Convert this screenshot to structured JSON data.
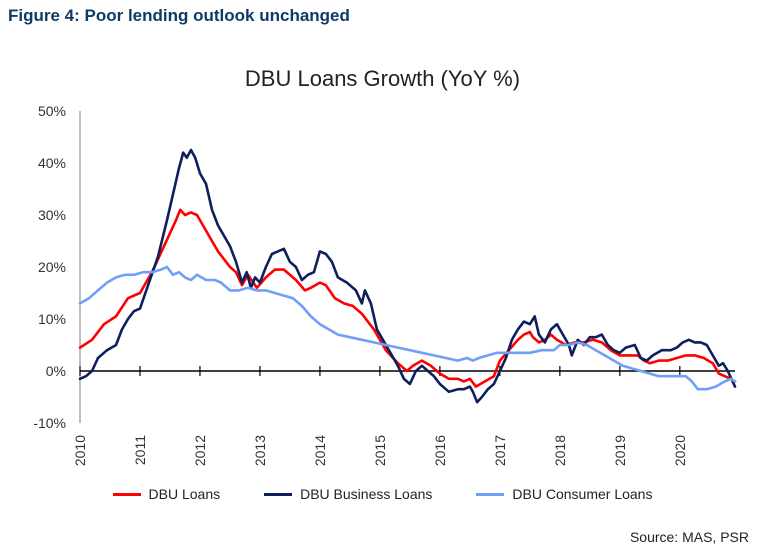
{
  "figure_heading": "Figure 4: Poor lending outlook unchanged",
  "source_note": "Source: MAS, PSR",
  "colors": {
    "heading": "#0f3a66",
    "dbu_loans": "#ff0000",
    "dbu_business_loans": "#0d1f5c",
    "dbu_consumer_loans": "#6fa0f5"
  },
  "chart_data": {
    "type": "line",
    "title": "DBU Loans Growth (YoY %)",
    "xlabel": "",
    "ylabel": "",
    "x_ticks": [
      "2010",
      "2011",
      "2012",
      "2013",
      "2014",
      "2015",
      "2016",
      "2017",
      "2018",
      "2019",
      "2020"
    ],
    "y_ticks": [
      "50%",
      "40%",
      "30%",
      "20%",
      "10%",
      "0%",
      "-10%"
    ],
    "y_tick_values": [
      50,
      40,
      30,
      20,
      10,
      0,
      -10
    ],
    "ylim": [
      -10,
      50
    ],
    "xlim": [
      2010.0,
      2020.92
    ],
    "grid": false,
    "legend": "bottom",
    "series": [
      {
        "name": "DBU Loans",
        "color": "#ff0000",
        "points": [
          [
            2010.0,
            4.5
          ],
          [
            2010.2,
            6
          ],
          [
            2010.4,
            9
          ],
          [
            2010.6,
            10.5
          ],
          [
            2010.8,
            14
          ],
          [
            2011.0,
            15
          ],
          [
            2011.2,
            19
          ],
          [
            2011.4,
            24
          ],
          [
            2011.6,
            29
          ],
          [
            2011.67,
            31
          ],
          [
            2011.75,
            30
          ],
          [
            2011.85,
            30.5
          ],
          [
            2011.95,
            30
          ],
          [
            2012.1,
            27
          ],
          [
            2012.3,
            23
          ],
          [
            2012.5,
            20
          ],
          [
            2012.6,
            19
          ],
          [
            2012.7,
            16.5
          ],
          [
            2012.8,
            18.5
          ],
          [
            2012.95,
            16
          ],
          [
            2013.1,
            18
          ],
          [
            2013.25,
            19.5
          ],
          [
            2013.4,
            19.5
          ],
          [
            2013.6,
            17.5
          ],
          [
            2013.75,
            15.5
          ],
          [
            2013.85,
            16
          ],
          [
            2014.0,
            17
          ],
          [
            2014.1,
            16.5
          ],
          [
            2014.25,
            14
          ],
          [
            2014.4,
            13
          ],
          [
            2014.55,
            12.5
          ],
          [
            2014.7,
            11
          ],
          [
            2014.9,
            8
          ],
          [
            2015.1,
            4
          ],
          [
            2015.3,
            1.5
          ],
          [
            2015.45,
            0
          ],
          [
            2015.55,
            1
          ],
          [
            2015.7,
            2
          ],
          [
            2015.85,
            1
          ],
          [
            2016.0,
            -0.5
          ],
          [
            2016.15,
            -1.5
          ],
          [
            2016.3,
            -1.5
          ],
          [
            2016.4,
            -2
          ],
          [
            2016.5,
            -1.5
          ],
          [
            2016.6,
            -3
          ],
          [
            2016.75,
            -2
          ],
          [
            2016.9,
            -1
          ],
          [
            2017.0,
            2
          ],
          [
            2017.15,
            4
          ],
          [
            2017.3,
            6
          ],
          [
            2017.4,
            7
          ],
          [
            2017.5,
            7.5
          ],
          [
            2017.55,
            6.5
          ],
          [
            2017.65,
            5.5
          ],
          [
            2017.75,
            6
          ],
          [
            2017.85,
            7
          ],
          [
            2017.95,
            6
          ],
          [
            2018.1,
            5
          ],
          [
            2018.25,
            5.5
          ],
          [
            2018.4,
            5.5
          ],
          [
            2018.55,
            6
          ],
          [
            2018.7,
            5.5
          ],
          [
            2018.85,
            4
          ],
          [
            2019.0,
            3
          ],
          [
            2019.15,
            3
          ],
          [
            2019.3,
            3
          ],
          [
            2019.4,
            2
          ],
          [
            2019.5,
            1.5
          ],
          [
            2019.65,
            2
          ],
          [
            2019.8,
            2
          ],
          [
            2019.95,
            2.5
          ],
          [
            2020.1,
            3
          ],
          [
            2020.25,
            3
          ],
          [
            2020.4,
            2.5
          ],
          [
            2020.55,
            1.5
          ],
          [
            2020.65,
            -0.5
          ],
          [
            2020.75,
            -1
          ],
          [
            2020.85,
            -1.5
          ],
          [
            2020.92,
            -2
          ]
        ]
      },
      {
        "name": "DBU Business Loans",
        "color": "#0d1f5c",
        "points": [
          [
            2010.0,
            -1.5
          ],
          [
            2010.1,
            -1
          ],
          [
            2010.2,
            0
          ],
          [
            2010.3,
            2.5
          ],
          [
            2010.45,
            4
          ],
          [
            2010.6,
            5
          ],
          [
            2010.7,
            8
          ],
          [
            2010.8,
            10
          ],
          [
            2010.9,
            11.5
          ],
          [
            2011.0,
            12
          ],
          [
            2011.15,
            17
          ],
          [
            2011.3,
            22
          ],
          [
            2011.45,
            29
          ],
          [
            2011.55,
            34
          ],
          [
            2011.65,
            39
          ],
          [
            2011.72,
            42
          ],
          [
            2011.78,
            41
          ],
          [
            2011.85,
            42.5
          ],
          [
            2011.92,
            41
          ],
          [
            2012.0,
            38
          ],
          [
            2012.1,
            36
          ],
          [
            2012.2,
            31
          ],
          [
            2012.3,
            28
          ],
          [
            2012.4,
            26
          ],
          [
            2012.5,
            24
          ],
          [
            2012.6,
            21
          ],
          [
            2012.7,
            17
          ],
          [
            2012.78,
            19
          ],
          [
            2012.85,
            16
          ],
          [
            2012.92,
            18
          ],
          [
            2013.0,
            17
          ],
          [
            2013.1,
            20
          ],
          [
            2013.2,
            22.5
          ],
          [
            2013.3,
            23
          ],
          [
            2013.4,
            23.5
          ],
          [
            2013.5,
            21
          ],
          [
            2013.6,
            20
          ],
          [
            2013.7,
            17.5
          ],
          [
            2013.8,
            18.5
          ],
          [
            2013.9,
            19
          ],
          [
            2014.0,
            23
          ],
          [
            2014.1,
            22.5
          ],
          [
            2014.2,
            21
          ],
          [
            2014.3,
            18
          ],
          [
            2014.45,
            17
          ],
          [
            2014.6,
            15.5
          ],
          [
            2014.7,
            13
          ],
          [
            2014.75,
            15.5
          ],
          [
            2014.85,
            13
          ],
          [
            2014.95,
            8
          ],
          [
            2015.05,
            6
          ],
          [
            2015.2,
            3
          ],
          [
            2015.3,
            1
          ],
          [
            2015.4,
            -1.5
          ],
          [
            2015.5,
            -2.5
          ],
          [
            2015.6,
            0
          ],
          [
            2015.7,
            1
          ],
          [
            2015.8,
            0
          ],
          [
            2015.9,
            -1
          ],
          [
            2016.0,
            -2.5
          ],
          [
            2016.15,
            -4
          ],
          [
            2016.3,
            -3.5
          ],
          [
            2016.4,
            -3.5
          ],
          [
            2016.5,
            -3
          ],
          [
            2016.55,
            -4
          ],
          [
            2016.62,
            -6
          ],
          [
            2016.7,
            -5
          ],
          [
            2016.8,
            -3.5
          ],
          [
            2016.9,
            -2.5
          ],
          [
            2017.0,
            0
          ],
          [
            2017.1,
            2.5
          ],
          [
            2017.2,
            6
          ],
          [
            2017.3,
            8
          ],
          [
            2017.4,
            9.5
          ],
          [
            2017.5,
            9
          ],
          [
            2017.58,
            10.5
          ],
          [
            2017.65,
            7
          ],
          [
            2017.75,
            5.5
          ],
          [
            2017.85,
            8
          ],
          [
            2017.95,
            9
          ],
          [
            2018.05,
            7
          ],
          [
            2018.15,
            5
          ],
          [
            2018.2,
            3
          ],
          [
            2018.3,
            6
          ],
          [
            2018.4,
            5
          ],
          [
            2018.5,
            6.5
          ],
          [
            2018.6,
            6.5
          ],
          [
            2018.7,
            7
          ],
          [
            2018.8,
            5
          ],
          [
            2018.9,
            4
          ],
          [
            2019.0,
            3.5
          ],
          [
            2019.1,
            4.5
          ],
          [
            2019.25,
            5
          ],
          [
            2019.35,
            2.5
          ],
          [
            2019.45,
            2
          ],
          [
            2019.55,
            3
          ],
          [
            2019.7,
            4
          ],
          [
            2019.85,
            4
          ],
          [
            2019.95,
            4.5
          ],
          [
            2020.05,
            5.5
          ],
          [
            2020.15,
            6
          ],
          [
            2020.25,
            5.5
          ],
          [
            2020.35,
            5.5
          ],
          [
            2020.45,
            5
          ],
          [
            2020.55,
            3
          ],
          [
            2020.65,
            1
          ],
          [
            2020.72,
            1.5
          ],
          [
            2020.8,
            0
          ],
          [
            2020.88,
            -2
          ],
          [
            2020.92,
            -3
          ]
        ]
      },
      {
        "name": "DBU Consumer Loans",
        "color": "#6fa0f5",
        "points": [
          [
            2010.0,
            13
          ],
          [
            2010.15,
            14
          ],
          [
            2010.3,
            15.5
          ],
          [
            2010.45,
            17
          ],
          [
            2010.6,
            18
          ],
          [
            2010.75,
            18.5
          ],
          [
            2010.9,
            18.5
          ],
          [
            2011.05,
            19
          ],
          [
            2011.2,
            19
          ],
          [
            2011.35,
            19.5
          ],
          [
            2011.45,
            20
          ],
          [
            2011.55,
            18.5
          ],
          [
            2011.65,
            19
          ],
          [
            2011.75,
            18
          ],
          [
            2011.85,
            17.5
          ],
          [
            2011.95,
            18.5
          ],
          [
            2012.1,
            17.5
          ],
          [
            2012.25,
            17.5
          ],
          [
            2012.35,
            17
          ],
          [
            2012.5,
            15.5
          ],
          [
            2012.65,
            15.5
          ],
          [
            2012.8,
            16
          ],
          [
            2012.95,
            15.5
          ],
          [
            2013.1,
            15.5
          ],
          [
            2013.25,
            15
          ],
          [
            2013.4,
            14.5
          ],
          [
            2013.55,
            14
          ],
          [
            2013.7,
            12.5
          ],
          [
            2013.85,
            10.5
          ],
          [
            2014.0,
            9
          ],
          [
            2014.15,
            8
          ],
          [
            2014.3,
            7
          ],
          [
            2014.5,
            6.5
          ],
          [
            2014.7,
            6
          ],
          [
            2014.9,
            5.5
          ],
          [
            2015.1,
            5
          ],
          [
            2015.3,
            4.5
          ],
          [
            2015.5,
            4
          ],
          [
            2015.7,
            3.5
          ],
          [
            2015.9,
            3
          ],
          [
            2016.1,
            2.5
          ],
          [
            2016.3,
            2
          ],
          [
            2016.45,
            2.5
          ],
          [
            2016.55,
            2
          ],
          [
            2016.65,
            2.5
          ],
          [
            2016.8,
            3
          ],
          [
            2016.95,
            3.5
          ],
          [
            2017.1,
            3.5
          ],
          [
            2017.3,
            3.5
          ],
          [
            2017.5,
            3.5
          ],
          [
            2017.7,
            4
          ],
          [
            2017.9,
            4
          ],
          [
            2018.0,
            5
          ],
          [
            2018.15,
            5
          ],
          [
            2018.3,
            5.5
          ],
          [
            2018.45,
            5
          ],
          [
            2018.6,
            4
          ],
          [
            2018.75,
            3
          ],
          [
            2018.9,
            2
          ],
          [
            2019.05,
            1
          ],
          [
            2019.2,
            0.5
          ],
          [
            2019.35,
            0
          ],
          [
            2019.5,
            -0.5
          ],
          [
            2019.65,
            -1
          ],
          [
            2019.8,
            -1
          ],
          [
            2019.95,
            -1
          ],
          [
            2020.1,
            -1
          ],
          [
            2020.2,
            -2
          ],
          [
            2020.3,
            -3.5
          ],
          [
            2020.45,
            -3.5
          ],
          [
            2020.6,
            -3
          ],
          [
            2020.75,
            -2
          ],
          [
            2020.85,
            -1.5
          ],
          [
            2020.92,
            -2
          ]
        ]
      }
    ]
  }
}
